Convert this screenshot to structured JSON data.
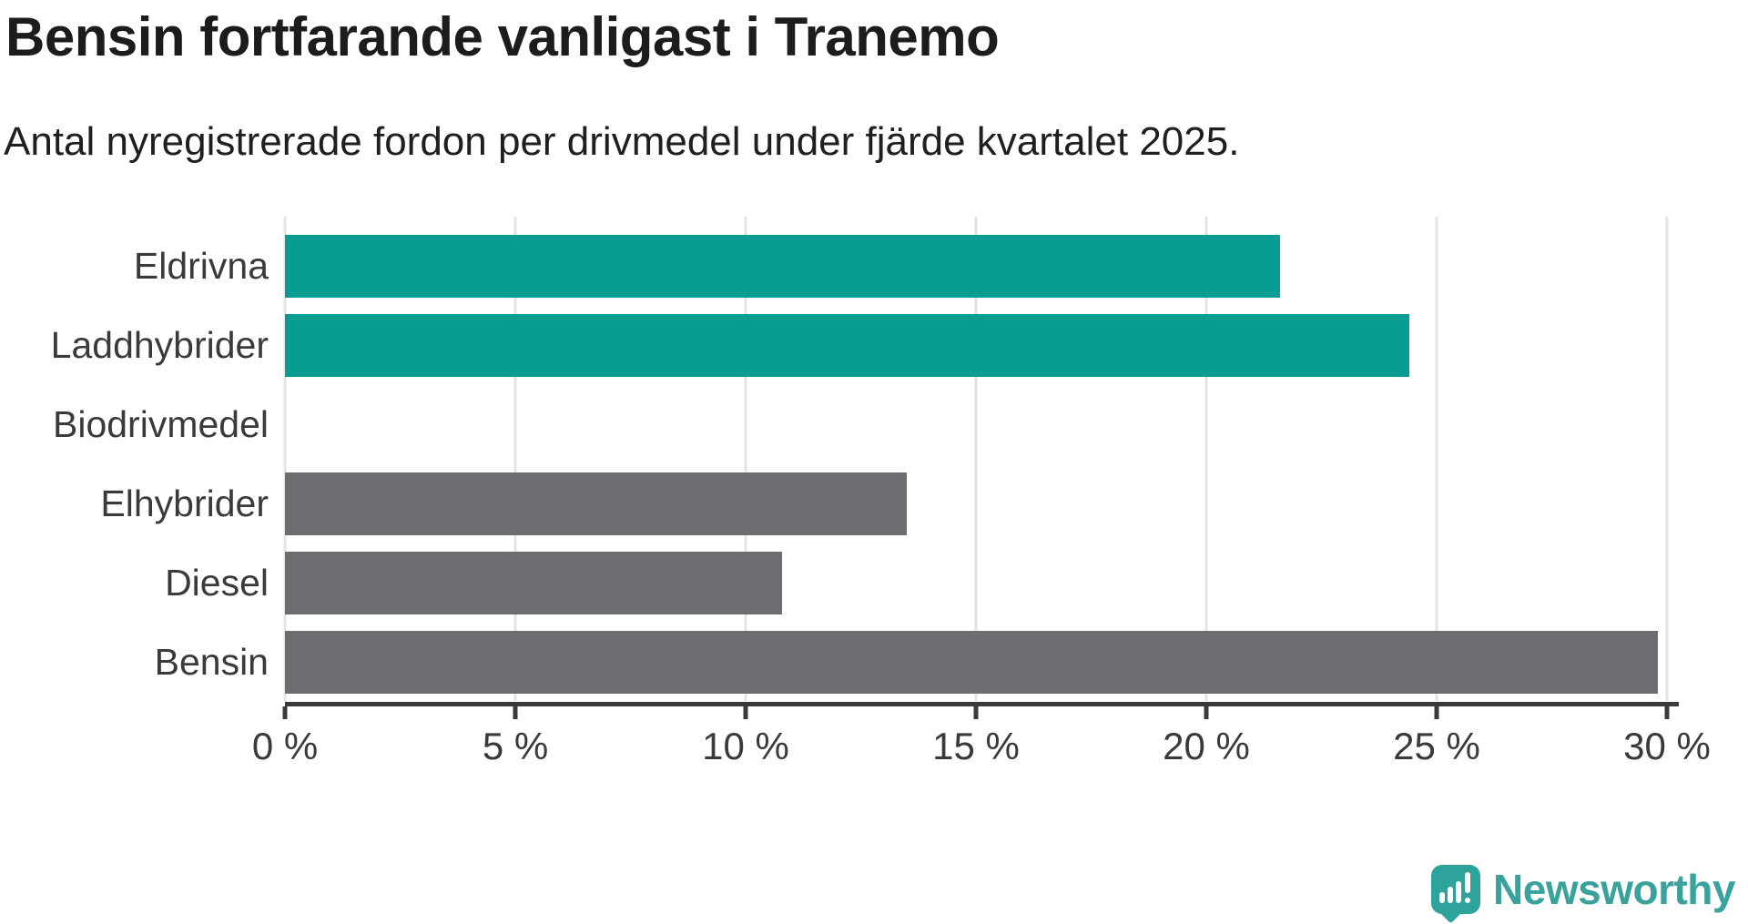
{
  "title": "Bensin fortfarande vanligast i Tranemo",
  "subtitle": "Antal nyregistrerade fordon per drivmedel under fjärde kvartalet 2025.",
  "chart_data": {
    "type": "bar",
    "orientation": "horizontal",
    "title": "Bensin fortfarande vanligast i Tranemo",
    "subtitle": "Antal nyregistrerade fordon per drivmedel under fjärde kvartalet 2025.",
    "categories": [
      "Eldrivna",
      "Laddhybrider",
      "Biodrivmedel",
      "Elhybrider",
      "Diesel",
      "Bensin"
    ],
    "values": [
      21.6,
      24.4,
      0,
      13.5,
      10.8,
      29.8
    ],
    "unit": "%",
    "bar_colors": [
      "#089c93",
      "#089c93",
      "#089c93",
      "#6c6c71",
      "#6c6c71",
      "#6c6c71"
    ],
    "xlim": [
      0,
      30
    ],
    "x_tick_values": [
      0,
      5,
      10,
      15,
      20,
      25,
      30
    ],
    "x_tick_labels": [
      "0 %",
      "5 %",
      "10 %",
      "15 %",
      "20 %",
      "25 %",
      "30 %"
    ],
    "grid": true,
    "gridline_color": "#e4e4e4",
    "axis_color": "#3a3a3a",
    "highlight_color": "#089c93",
    "default_color": "#6c6c71"
  },
  "branding": {
    "logo_text": "Newsworthy",
    "logo_color": "#3aa29c",
    "logo_icon": "speech-bubble-bar-chart-icon"
  }
}
